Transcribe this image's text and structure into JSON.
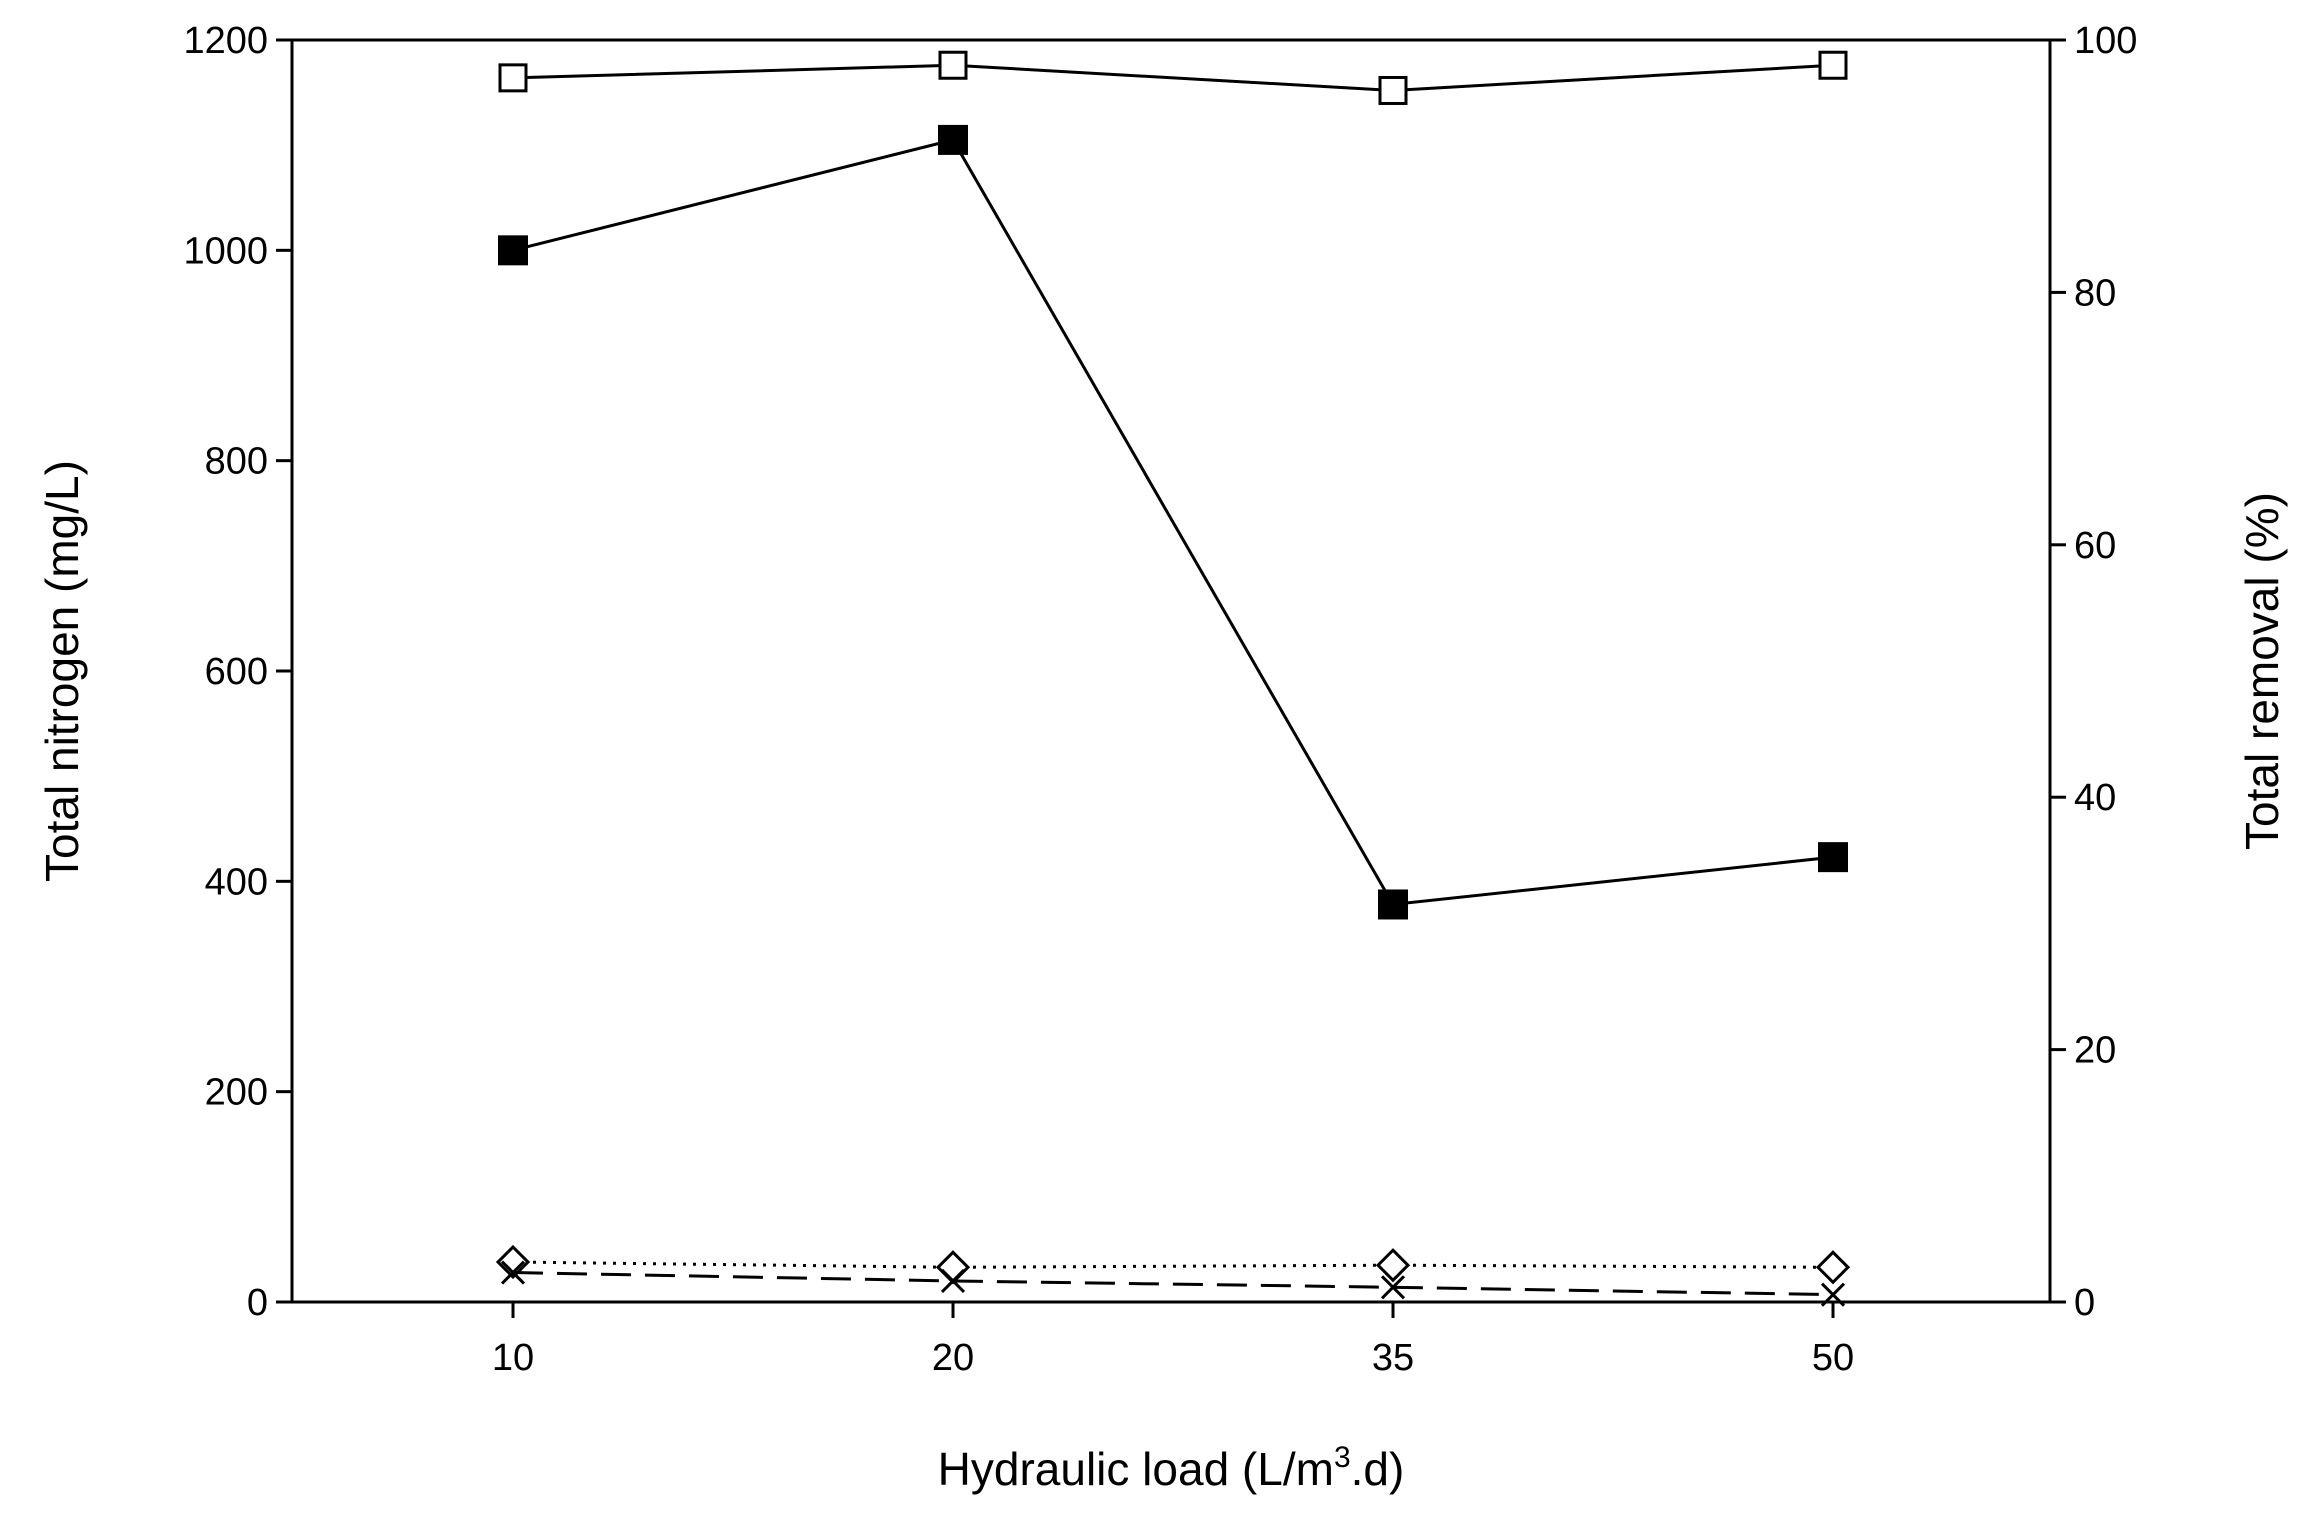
{
  "chart_data": {
    "type": "line",
    "categories": [
      "10",
      "20",
      "35",
      "50"
    ],
    "x_axis": {
      "label_main": "Hydraulic load (L/m",
      "label_sup": "3",
      "label_tail": ".d)",
      "tick_labels": [
        "10",
        "20",
        "35",
        "50"
      ]
    },
    "y_axis_left": {
      "label": "Total nitrogen (mg/L)",
      "range": [
        0,
        1200
      ],
      "tick_labels": [
        "0",
        "200",
        "400",
        "600",
        "800",
        "1000",
        "1200"
      ]
    },
    "y_axis_right": {
      "label": "Total removal (%)",
      "range": [
        0,
        100
      ],
      "tick_labels": [
        "0",
        "20",
        "40",
        "60",
        "80",
        "100"
      ]
    },
    "grid": false,
    "legend": "none",
    "series": [
      {
        "axis": "right",
        "marker": "open-square",
        "line": "solid",
        "values": [
          97,
          98,
          96,
          98
        ]
      },
      {
        "axis": "left",
        "marker": "filled-square",
        "line": "solid",
        "values": [
          1000,
          1105,
          378,
          423
        ]
      },
      {
        "axis": "left",
        "marker": "open-diamond",
        "line": "dotted",
        "values": [
          38,
          33,
          35,
          33
        ]
      },
      {
        "axis": "left",
        "marker": "x",
        "line": "dashed",
        "values": [
          28,
          20,
          14,
          7
        ]
      }
    ],
    "colors": {
      "ink": "#000000",
      "background": "#ffffff"
    }
  }
}
